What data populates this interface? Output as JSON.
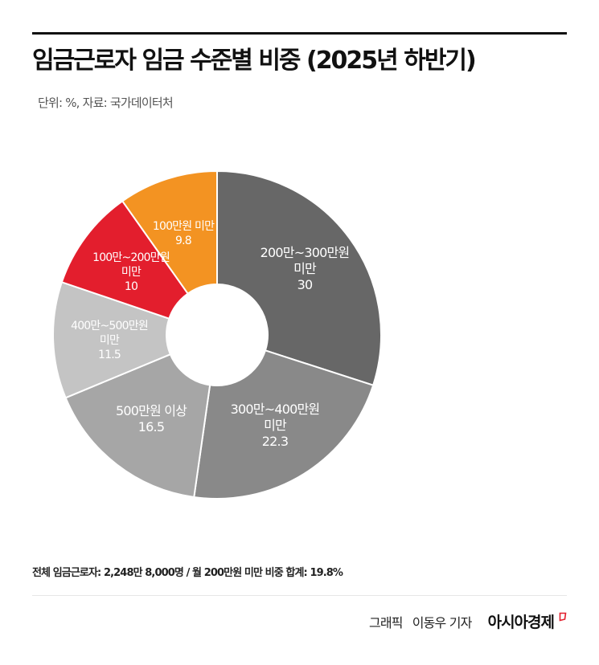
{
  "header": {
    "title": "임금근로자 임금 수준별 비중 (2025년 하반기)",
    "subtitle": "단위: %, 자료: 국가데이터처"
  },
  "chart_data": {
    "type": "pie",
    "variant": "donut",
    "title": "임금근로자 임금 수준별 비중 (2025년 하반기)",
    "unit": "%",
    "source": "국가데이터처",
    "categories": [
      "200만~300만원 미만",
      "300만~400만원 미만",
      "500만원 이상",
      "400만~500만원 미만",
      "100만~200만원 미만",
      "100만원 미만"
    ],
    "values": [
      30,
      22.3,
      16.5,
      11.5,
      10,
      9.8
    ],
    "colors": [
      "#676767",
      "#898989",
      "#a6a6a6",
      "#c4c4c4",
      "#e31e2d",
      "#f39322"
    ],
    "start_angle_deg": 0,
    "direction": "clockwise",
    "legend": "none (labels inside slices)"
  },
  "slices": [
    {
      "line1": "200만~300만원",
      "line2": "미만",
      "value": "30"
    },
    {
      "line1": "300만~400만원",
      "line2": "미만",
      "value": "22.3"
    },
    {
      "line1": "500만원 이상",
      "line2": "",
      "value": "16.5"
    },
    {
      "line1": "400만~500만원",
      "line2": "미만",
      "value": "11.5"
    },
    {
      "line1": "100만~200만원",
      "line2": "미만",
      "value": "10"
    },
    {
      "line1": "100만원 미만",
      "line2": "",
      "value": "9.8"
    }
  ],
  "footnote": "전체 임금근로자: 2,248만 8,000명 / 월 200만원 미만 비중 합계: 19.8%",
  "credit": {
    "graphic": "그래픽",
    "reporter": "이동우 기자",
    "brand": "아시아경제",
    "brand_color": "#e31e2d"
  }
}
